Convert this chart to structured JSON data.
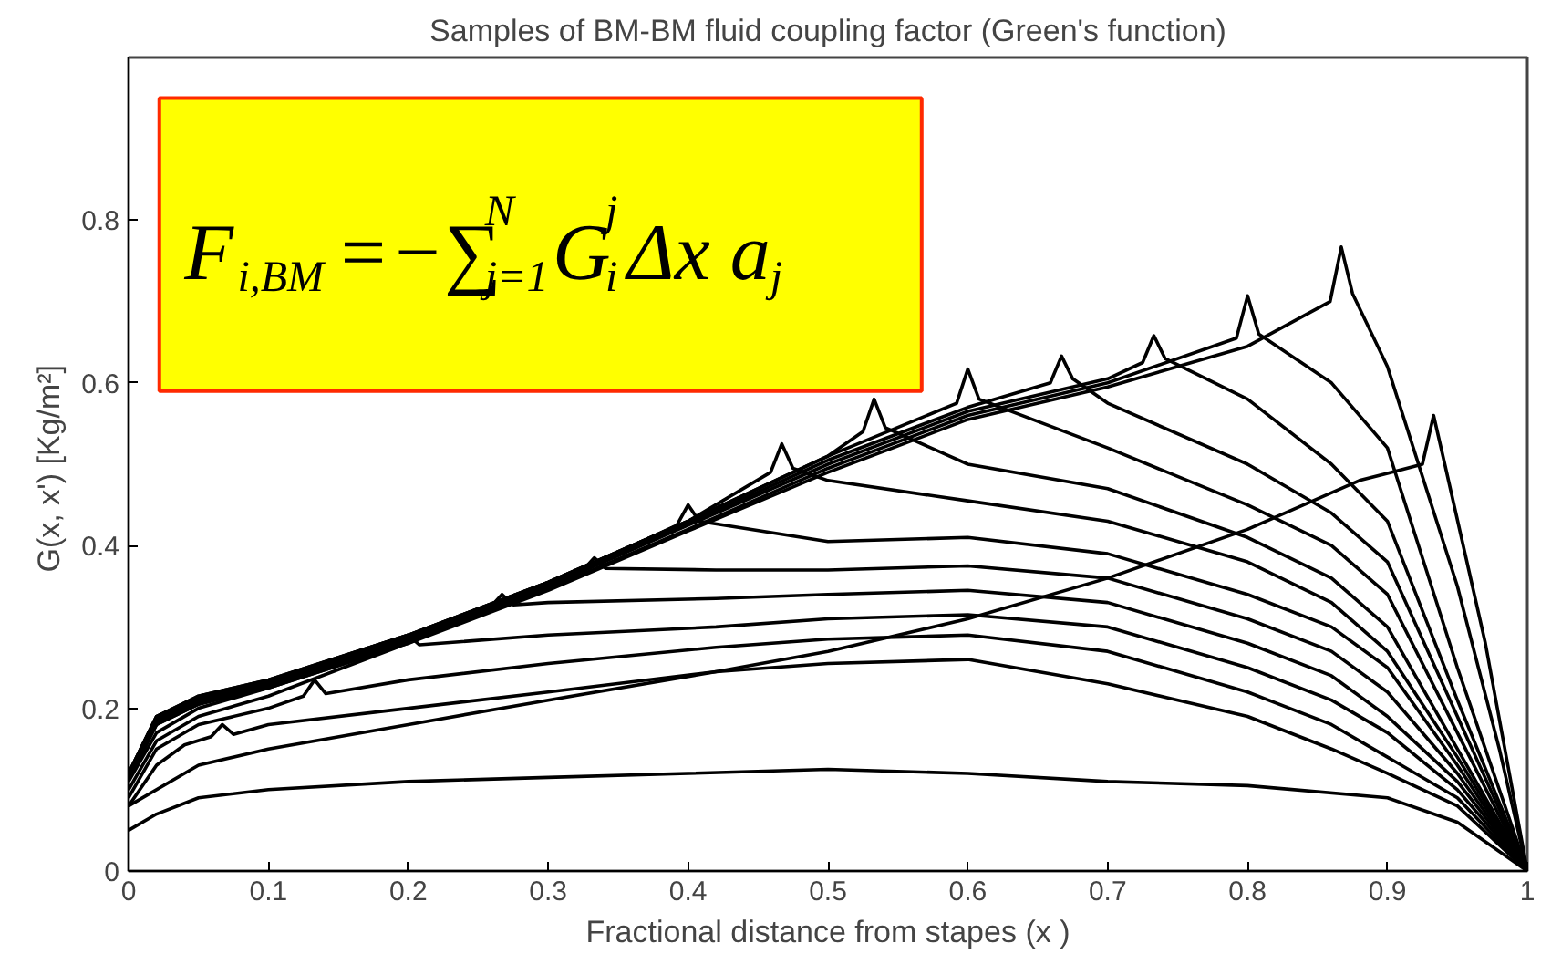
{
  "chart_data": {
    "type": "line",
    "title": "Samples of BM-BM fluid coupling factor (Green's function)",
    "xlabel": "Fractional distance from stapes (x )",
    "ylabel": "G(x, x')  [Kg/m²]",
    "xlim": [
      0,
      1
    ],
    "ylim": [
      0,
      1
    ],
    "xticks": [
      0,
      0.1,
      0.2,
      0.3,
      0.4,
      0.5,
      0.6,
      0.7,
      0.8,
      0.9,
      1
    ],
    "yticks": [
      0,
      0.2,
      0.4,
      0.6,
      0.8
    ],
    "grid": false,
    "marker": "none",
    "line_style": "solid",
    "annotations": [
      "F$_{i,BM}$=−∑$^{N}$$_{j=1}$G$^{j}$$_{i}$Δx a$_{j}$"
    ],
    "series": [
      {
        "color": "#000000",
        "x": [
          0,
          0.02,
          0.04,
          0.059,
          0.067,
          0.075,
          0.1,
          0.2,
          0.3,
          0.42,
          0.5,
          0.6,
          0.7,
          0.8,
          0.86,
          0.9,
          0.95,
          1
        ],
        "values": [
          0.08,
          0.13,
          0.155,
          0.165,
          0.18,
          0.168,
          0.18,
          0.2,
          0.22,
          0.245,
          0.255,
          0.26,
          0.23,
          0.19,
          0.15,
          0.12,
          0.08,
          0
        ]
      },
      {
        "color": "#000000",
        "x": [
          0,
          0.02,
          0.05,
          0.1,
          0.125,
          0.133,
          0.141,
          0.2,
          0.3,
          0.42,
          0.5,
          0.6,
          0.7,
          0.8,
          0.86,
          0.9,
          0.95,
          1
        ],
        "values": [
          0.09,
          0.15,
          0.18,
          0.2,
          0.215,
          0.235,
          0.218,
          0.235,
          0.255,
          0.275,
          0.285,
          0.29,
          0.27,
          0.22,
          0.18,
          0.14,
          0.09,
          0
        ]
      },
      {
        "color": "#000000",
        "x": [
          0,
          0.02,
          0.05,
          0.1,
          0.192,
          0.2,
          0.208,
          0.3,
          0.42,
          0.5,
          0.6,
          0.7,
          0.8,
          0.86,
          0.9,
          0.95,
          1
        ],
        "values": [
          0.1,
          0.16,
          0.19,
          0.215,
          0.275,
          0.29,
          0.278,
          0.29,
          0.3,
          0.31,
          0.315,
          0.3,
          0.25,
          0.21,
          0.17,
          0.1,
          0
        ]
      },
      {
        "color": "#000000",
        "x": [
          0,
          0.02,
          0.05,
          0.1,
          0.2,
          0.259,
          0.267,
          0.275,
          0.3,
          0.42,
          0.5,
          0.6,
          0.7,
          0.8,
          0.86,
          0.9,
          0.95,
          1
        ],
        "values": [
          0.11,
          0.17,
          0.2,
          0.225,
          0.28,
          0.325,
          0.34,
          0.327,
          0.33,
          0.335,
          0.34,
          0.345,
          0.33,
          0.28,
          0.24,
          0.19,
          0.11,
          0
        ]
      },
      {
        "color": "#000000",
        "x": [
          0,
          0.02,
          0.05,
          0.1,
          0.2,
          0.3,
          0.325,
          0.333,
          0.341,
          0.42,
          0.5,
          0.6,
          0.7,
          0.8,
          0.86,
          0.9,
          0.95,
          1
        ],
        "values": [
          0.115,
          0.18,
          0.205,
          0.23,
          0.285,
          0.35,
          0.37,
          0.385,
          0.372,
          0.37,
          0.37,
          0.375,
          0.36,
          0.31,
          0.27,
          0.22,
          0.12,
          0
        ]
      },
      {
        "color": "#000000",
        "x": [
          0,
          0.02,
          0.05,
          0.1,
          0.2,
          0.3,
          0.392,
          0.4,
          0.408,
          0.5,
          0.6,
          0.7,
          0.8,
          0.86,
          0.9,
          0.95,
          1
        ],
        "values": [
          0.118,
          0.185,
          0.21,
          0.232,
          0.288,
          0.352,
          0.425,
          0.45,
          0.43,
          0.405,
          0.41,
          0.39,
          0.34,
          0.3,
          0.25,
          0.13,
          0
        ]
      },
      {
        "color": "#000000",
        "x": [
          0,
          0.02,
          0.05,
          0.1,
          0.2,
          0.3,
          0.4,
          0.459,
          0.467,
          0.475,
          0.5,
          0.6,
          0.7,
          0.8,
          0.86,
          0.9,
          0.95,
          1
        ],
        "values": [
          0.12,
          0.19,
          0.213,
          0.234,
          0.29,
          0.355,
          0.43,
          0.49,
          0.525,
          0.495,
          0.48,
          0.455,
          0.43,
          0.38,
          0.33,
          0.27,
          0.14,
          0
        ]
      },
      {
        "color": "#000000",
        "x": [
          0,
          0.02,
          0.05,
          0.1,
          0.2,
          0.3,
          0.4,
          0.5,
          0.525,
          0.533,
          0.541,
          0.6,
          0.7,
          0.8,
          0.86,
          0.9,
          0.95,
          1
        ],
        "values": [
          0.12,
          0.19,
          0.215,
          0.235,
          0.29,
          0.355,
          0.43,
          0.51,
          0.54,
          0.58,
          0.545,
          0.5,
          0.47,
          0.41,
          0.36,
          0.3,
          0.15,
          0
        ]
      },
      {
        "color": "#000000",
        "x": [
          0,
          0.02,
          0.05,
          0.1,
          0.2,
          0.3,
          0.4,
          0.5,
          0.592,
          0.6,
          0.608,
          0.7,
          0.8,
          0.86,
          0.9,
          0.95,
          1
        ],
        "values": [
          0.12,
          0.19,
          0.215,
          0.235,
          0.29,
          0.355,
          0.43,
          0.51,
          0.575,
          0.617,
          0.58,
          0.52,
          0.45,
          0.4,
          0.34,
          0.17,
          0
        ]
      },
      {
        "color": "#000000",
        "x": [
          0,
          0.02,
          0.05,
          0.1,
          0.2,
          0.3,
          0.4,
          0.5,
          0.6,
          0.659,
          0.667,
          0.675,
          0.7,
          0.8,
          0.86,
          0.9,
          0.95,
          1
        ],
        "values": [
          0.118,
          0.187,
          0.212,
          0.232,
          0.287,
          0.352,
          0.427,
          0.505,
          0.57,
          0.6,
          0.633,
          0.605,
          0.575,
          0.5,
          0.44,
          0.38,
          0.19,
          0
        ]
      },
      {
        "color": "#000000",
        "x": [
          0,
          0.02,
          0.05,
          0.1,
          0.2,
          0.3,
          0.4,
          0.5,
          0.6,
          0.7,
          0.725,
          0.733,
          0.741,
          0.8,
          0.86,
          0.9,
          0.95,
          1
        ],
        "values": [
          0.116,
          0.185,
          0.21,
          0.23,
          0.285,
          0.35,
          0.425,
          0.5,
          0.565,
          0.605,
          0.625,
          0.658,
          0.63,
          0.58,
          0.5,
          0.43,
          0.21,
          0
        ]
      },
      {
        "color": "#000000",
        "x": [
          0,
          0.02,
          0.05,
          0.1,
          0.2,
          0.3,
          0.4,
          0.5,
          0.6,
          0.7,
          0.792,
          0.8,
          0.808,
          0.86,
          0.9,
          0.95,
          1
        ],
        "values": [
          0.114,
          0.182,
          0.207,
          0.227,
          0.282,
          0.347,
          0.42,
          0.495,
          0.56,
          0.6,
          0.655,
          0.707,
          0.66,
          0.6,
          0.52,
          0.25,
          0
        ]
      },
      {
        "color": "#000000",
        "x": [
          0,
          0.02,
          0.05,
          0.1,
          0.2,
          0.3,
          0.4,
          0.5,
          0.6,
          0.7,
          0.8,
          0.859,
          0.867,
          0.875,
          0.9,
          0.95,
          0.98,
          1
        ],
        "values": [
          0.112,
          0.18,
          0.205,
          0.225,
          0.28,
          0.345,
          0.418,
          0.49,
          0.555,
          0.595,
          0.645,
          0.7,
          0.767,
          0.71,
          0.62,
          0.35,
          0.15,
          0
        ]
      },
      {
        "color": "#000000",
        "x": [
          0,
          0.05,
          0.1,
          0.2,
          0.3,
          0.42,
          0.5,
          0.6,
          0.7,
          0.8,
          0.88,
          0.925,
          0.933,
          0.941,
          0.97,
          1
        ],
        "values": [
          0.08,
          0.13,
          0.15,
          0.18,
          0.21,
          0.245,
          0.27,
          0.31,
          0.36,
          0.42,
          0.48,
          0.5,
          0.56,
          0.5,
          0.28,
          0
        ]
      },
      {
        "color": "#000000",
        "x": [
          0,
          0.02,
          0.05,
          0.1,
          0.2,
          0.3,
          0.4,
          0.5,
          0.6,
          0.7,
          0.8,
          0.9,
          0.95,
          1
        ],
        "values": [
          0.05,
          0.07,
          0.09,
          0.1,
          0.11,
          0.115,
          0.12,
          0.125,
          0.12,
          0.11,
          0.105,
          0.09,
          0.06,
          0
        ]
      }
    ]
  }
}
